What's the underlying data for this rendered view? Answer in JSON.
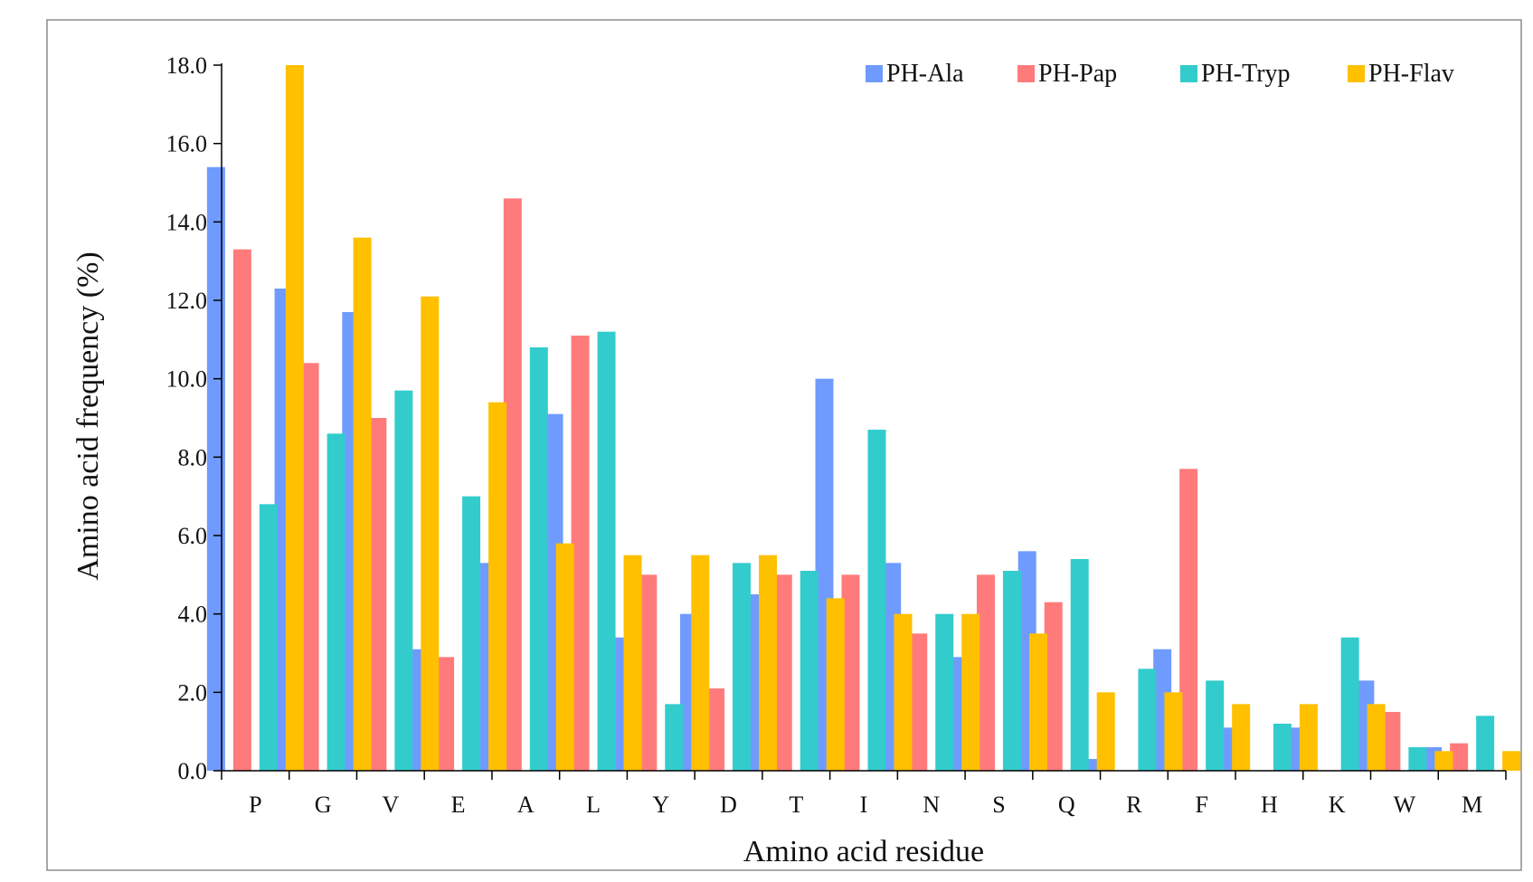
{
  "chart_data": {
    "type": "bar",
    "xlabel": "Amino acid residue",
    "ylabel": "Amino acid frequency (%)",
    "ylim": [
      0,
      18
    ],
    "yticks": [
      "0.0",
      "2.0",
      "4.0",
      "6.0",
      "8.0",
      "10.0",
      "12.0",
      "14.0",
      "16.0",
      "18.0"
    ],
    "categories": [
      "P",
      "G",
      "V",
      "E",
      "A",
      "L",
      "Y",
      "D",
      "T",
      "I",
      "N",
      "S",
      "Q",
      "R",
      "F",
      "H",
      "K",
      "W",
      "M"
    ],
    "grid": false,
    "legend_position": "top-right",
    "series": [
      {
        "name": "PH-Ala",
        "color": "#6f9bff",
        "values": [
          15.4,
          12.3,
          11.7,
          3.1,
          5.3,
          9.1,
          3.4,
          4.0,
          4.5,
          10.0,
          5.3,
          2.9,
          5.6,
          0.3,
          3.1,
          1.1,
          1.1,
          2.3,
          0.6
        ]
      },
      {
        "name": "PH-Pap",
        "color": "#ff7b7b",
        "values": [
          13.3,
          10.4,
          9.0,
          2.9,
          14.6,
          11.1,
          5.0,
          2.1,
          5.0,
          5.0,
          3.5,
          5.0,
          4.3,
          0.0,
          7.7,
          0.0,
          0.0,
          1.5,
          0.7
        ]
      },
      {
        "name": "PH-Tryp",
        "color": "#33cccc",
        "values": [
          6.8,
          8.6,
          9.7,
          7.0,
          10.8,
          11.2,
          1.7,
          5.3,
          5.1,
          8.7,
          4.0,
          5.1,
          5.4,
          2.6,
          2.3,
          1.2,
          3.4,
          0.6,
          1.4
        ]
      },
      {
        "name": "PH-Flav",
        "color": "#ffc000",
        "values": [
          18.0,
          13.6,
          12.1,
          9.4,
          5.8,
          5.5,
          5.5,
          5.5,
          4.4,
          4.0,
          4.0,
          3.5,
          2.0,
          2.0,
          1.7,
          1.7,
          1.7,
          0.5,
          0.5
        ]
      }
    ]
  }
}
